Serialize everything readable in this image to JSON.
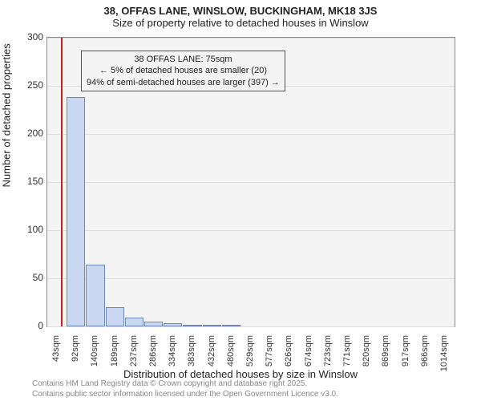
{
  "title": "38, OFFAS LANE, WINSLOW, BUCKINGHAM, MK18 3JS",
  "subtitle": "Size of property relative to detached houses in Winslow",
  "y_axis": {
    "label": "Number of detached properties",
    "ticks": [
      0,
      50,
      100,
      150,
      200,
      250,
      300
    ],
    "max": 300
  },
  "x_axis": {
    "label": "Distribution of detached houses by size in Winslow",
    "ticks": [
      "43sqm",
      "92sqm",
      "140sqm",
      "189sqm",
      "237sqm",
      "286sqm",
      "334sqm",
      "383sqm",
      "432sqm",
      "480sqm",
      "529sqm",
      "577sqm",
      "626sqm",
      "674sqm",
      "723sqm",
      "771sqm",
      "820sqm",
      "869sqm",
      "917sqm",
      "966sqm",
      "1014sqm"
    ]
  },
  "chart": {
    "type": "histogram",
    "bar_fill": "#c9d8f0",
    "bar_stroke": "#6f88b8",
    "n_bins": 21,
    "values": [
      0,
      238,
      64,
      20,
      9,
      5,
      3,
      2,
      1,
      1,
      0,
      0,
      0,
      0,
      0,
      0,
      0,
      0,
      0,
      0,
      0
    ],
    "background_color": "#f4f4f4",
    "grid_color": "#dddddd",
    "x_min": 43,
    "x_max": 1014
  },
  "marker": {
    "value_sqm": 75,
    "color": "#c81e1e",
    "annotation_lines": [
      "38 OFFAS LANE: 75sqm",
      "← 5% of detached houses are smaller (20)",
      "94% of semi-detached houses are larger (397) →"
    ],
    "border_color": "#c81e1e"
  },
  "footer": {
    "line1": "Contains HM Land Registry data © Crown copyright and database right 2025.",
    "line2": "Contains public sector information licensed under the Open Government Licence v3.0."
  }
}
